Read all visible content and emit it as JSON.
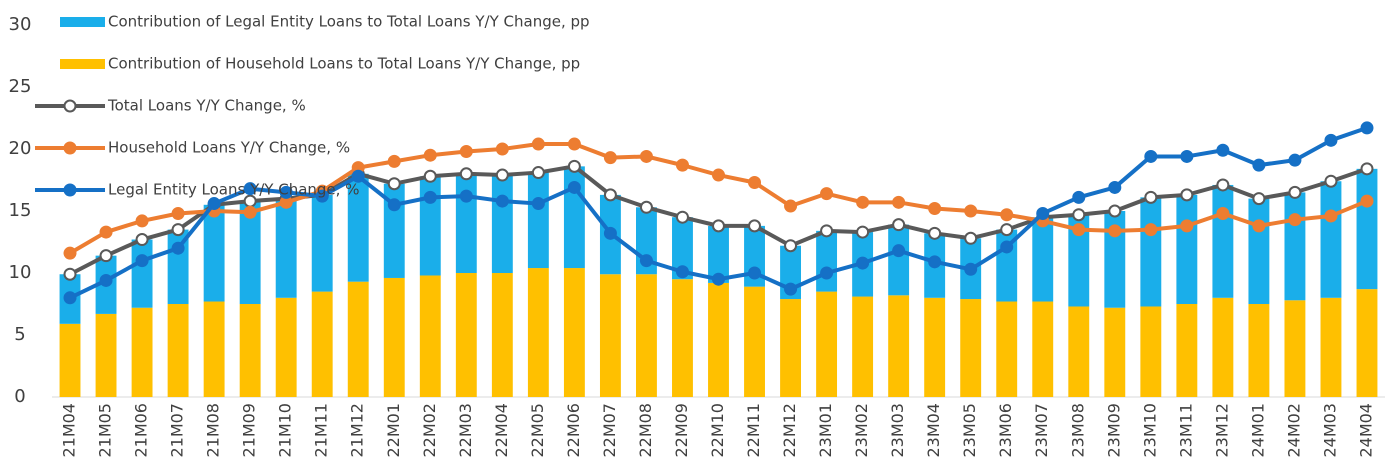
{
  "chart_data": {
    "type": "bar-line",
    "categories": [
      "21M04",
      "21M05",
      "21M06",
      "21M07",
      "21M08",
      "21M09",
      "21M10",
      "21M11",
      "21M12",
      "22M01",
      "22M02",
      "22M03",
      "22M04",
      "22M05",
      "22M06",
      "22M07",
      "22M08",
      "22M09",
      "22M10",
      "22M11",
      "22M12",
      "23M01",
      "23M02",
      "23M03",
      "23M04",
      "23M05",
      "23M06",
      "23M07",
      "23M08",
      "23M09",
      "23M10",
      "23M11",
      "23M12",
      "24M01",
      "24M02",
      "24M03",
      "24M04"
    ],
    "ylim": [
      0,
      30
    ],
    "yticks": [
      0,
      5,
      10,
      15,
      20,
      25,
      30
    ],
    "grid": false,
    "legend": "top-left",
    "series": [
      {
        "name": "Contribution of Legal Entity Loans to Total Loans Y/Y Change, pp",
        "type": "bar",
        "color": "#1aaeea",
        "values": [
          4.0,
          4.7,
          5.5,
          6.0,
          7.8,
          8.3,
          8.0,
          7.8,
          8.7,
          7.6,
          8.0,
          8.0,
          7.9,
          7.7,
          8.2,
          6.4,
          5.4,
          5.0,
          4.6,
          4.9,
          4.3,
          4.9,
          5.2,
          5.7,
          5.2,
          4.9,
          5.8,
          6.8,
          7.4,
          7.8,
          8.8,
          8.8,
          9.1,
          8.5,
          8.7,
          9.4,
          9.7
        ]
      },
      {
        "name": "Contribution of Household Loans to Total Loans Y/Y Change, pp",
        "type": "bar",
        "color": "#ffc000",
        "values": [
          5.9,
          6.7,
          7.2,
          7.5,
          7.7,
          7.5,
          8.0,
          8.5,
          9.3,
          9.6,
          9.8,
          10.0,
          10.0,
          10.4,
          10.4,
          9.9,
          9.9,
          9.5,
          9.2,
          8.9,
          7.9,
          8.5,
          8.1,
          8.2,
          8.0,
          7.9,
          7.7,
          7.7,
          7.3,
          7.2,
          7.3,
          7.5,
          8.0,
          7.5,
          7.8,
          8.0,
          8.7
        ]
      },
      {
        "name": "Total Loans Y/Y Change, %",
        "type": "line",
        "color": "#595959",
        "marker_fill": "#ffffff",
        "values": [
          9.9,
          11.4,
          12.7,
          13.5,
          15.5,
          15.8,
          16.0,
          16.3,
          18.0,
          17.2,
          17.8,
          18.0,
          17.9,
          18.1,
          18.6,
          16.3,
          15.3,
          14.5,
          13.8,
          13.8,
          12.2,
          13.4,
          13.3,
          13.9,
          13.2,
          12.8,
          13.5,
          14.5,
          14.7,
          15.0,
          16.1,
          16.3,
          17.1,
          16.0,
          16.5,
          17.4,
          18.4
        ]
      },
      {
        "name": "Household Loans Y/Y Change, %",
        "type": "line",
        "color": "#ed7d31",
        "values": [
          11.6,
          13.3,
          14.2,
          14.8,
          15.0,
          14.9,
          15.7,
          16.6,
          18.5,
          19.0,
          19.5,
          19.8,
          20.0,
          20.4,
          20.4,
          19.3,
          19.4,
          18.7,
          17.9,
          17.3,
          15.4,
          16.4,
          15.7,
          15.7,
          15.2,
          15.0,
          14.7,
          14.2,
          13.5,
          13.4,
          13.5,
          13.8,
          14.8,
          13.8,
          14.3,
          14.6,
          15.8
        ]
      },
      {
        "name": "Legal Entity Loans Y/Y Change, %",
        "type": "line",
        "color": "#1570c6",
        "values": [
          8.0,
          9.4,
          11.0,
          12.0,
          15.6,
          16.8,
          16.5,
          16.2,
          17.8,
          15.5,
          16.1,
          16.2,
          15.8,
          15.6,
          16.9,
          13.2,
          11.0,
          10.1,
          9.5,
          10.0,
          8.7,
          10.0,
          10.8,
          11.8,
          10.9,
          10.3,
          12.1,
          14.8,
          16.1,
          16.9,
          19.4,
          19.4,
          19.9,
          18.7,
          19.1,
          20.7,
          21.7
        ]
      }
    ]
  }
}
